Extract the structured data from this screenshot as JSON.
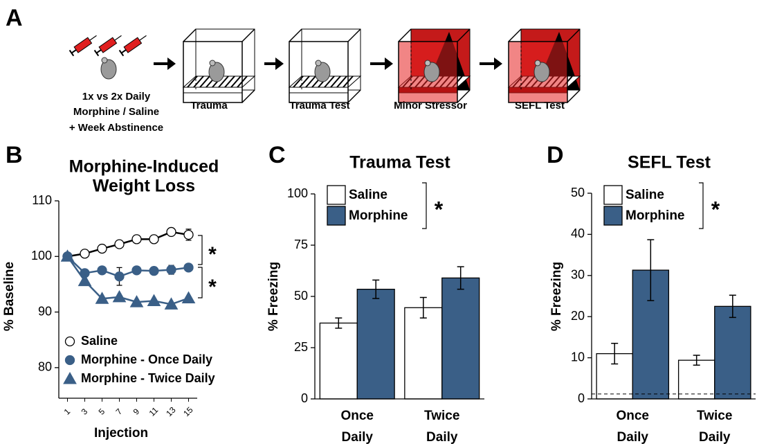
{
  "panel_a": {
    "letter": "A",
    "protocol": [
      "1x vs 2x Daily",
      "Morphine / Saline",
      "+ Week Abstinence"
    ],
    "steps": [
      "Trauma",
      "Trauma Test",
      "Minor Stressor",
      "SEFL Test"
    ]
  },
  "chart_data": [
    {
      "type": "line",
      "letter": "B",
      "title": [
        "Morphine-Induced",
        "Weight Loss"
      ],
      "ylabel": "% Baseline",
      "xlabel": "Injection",
      "x": [
        1,
        3,
        5,
        7,
        9,
        11,
        13,
        15
      ],
      "xlim": [
        0,
        16
      ],
      "xticks": [
        1,
        3,
        5,
        7,
        9,
        11,
        13,
        15
      ],
      "ylim": [
        74.5,
        110
      ],
      "yticks": [
        80,
        90,
        100,
        110
      ],
      "series": [
        {
          "name": "Saline",
          "color": "#ffffff",
          "marker": "circle",
          "values": [
            100,
            100.5,
            101.4,
            102.2,
            103.1,
            103.1,
            104.4,
            103.9
          ],
          "errors": [
            null,
            null,
            null,
            null,
            null,
            null,
            null,
            1.0
          ]
        },
        {
          "name": "Morphine - Once Daily",
          "color": "#3a5f87",
          "marker": "circle",
          "values": [
            100,
            97.0,
            97.5,
            96.4,
            97.5,
            97.4,
            97.6,
            98.0
          ],
          "errors": [
            null,
            null,
            null,
            1.6,
            null,
            null,
            0.8,
            null
          ]
        },
        {
          "name": "Morphine - Twice Daily",
          "color": "#3a5f87",
          "marker": "triangle",
          "values": [
            100,
            95.6,
            92.4,
            92.7,
            91.8,
            92.0,
            91.4,
            92.5
          ],
          "errors": [
            null,
            null,
            null,
            null,
            null,
            null,
            null,
            null
          ]
        }
      ],
      "annotations": [
        "*",
        "*"
      ]
    },
    {
      "type": "bar",
      "letter": "C",
      "title": "Trauma Test",
      "ylabel": "% Freezing",
      "categories": [
        "Once Daily",
        "Twice Daily"
      ],
      "ylim": [
        0,
        100
      ],
      "yticks": [
        0,
        25,
        50,
        75,
        100
      ],
      "series": [
        {
          "name": "Saline",
          "color": "#ffffff",
          "values": [
            37,
            44.5
          ],
          "errors": [
            2.5,
            5
          ]
        },
        {
          "name": "Morphine",
          "color": "#3a5f87",
          "values": [
            53.5,
            59
          ],
          "errors": [
            4.5,
            5.5
          ]
        }
      ],
      "annotations": [
        "*"
      ]
    },
    {
      "type": "bar",
      "letter": "D",
      "title": "SEFL Test",
      "ylabel": "% Freezing",
      "categories": [
        "Once Daily",
        "Twice Daily"
      ],
      "ylim": [
        0,
        50
      ],
      "yticks": [
        0,
        10,
        20,
        30,
        40,
        50
      ],
      "series": [
        {
          "name": "Saline",
          "color": "#ffffff",
          "values": [
            11,
            9.4
          ],
          "errors": [
            2.5,
            1.2
          ]
        },
        {
          "name": "Morphine",
          "color": "#3a5f87",
          "values": [
            31.3,
            22.5
          ],
          "errors": [
            7.4,
            2.7
          ]
        }
      ],
      "hline": 1.2,
      "annotations": [
        "*"
      ]
    }
  ]
}
